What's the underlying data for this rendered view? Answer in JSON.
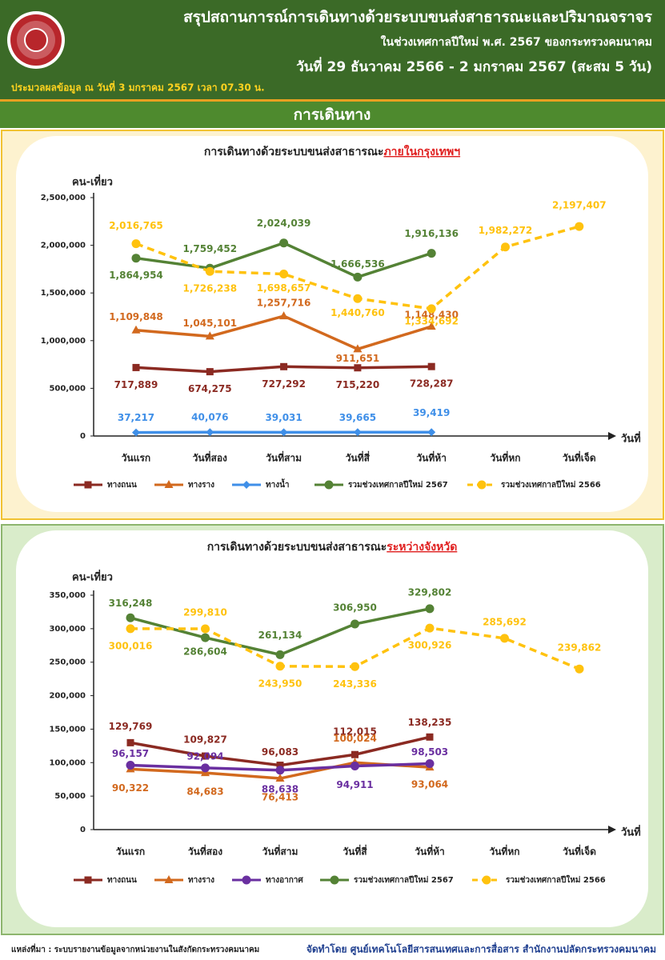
{
  "header": {
    "title": "สรุปสถานการณ์การเดินทางด้วยระบบขนส่งสาธารณะและปริมาณจราจร",
    "subtitle": "ในช่วงเทศกาลปีใหม่ พ.ศ. 2567 ของกระทรวงคมนาคม",
    "date_range": "วันที่ 29 ธันวาคม 2566 - 2 มกราคม 2567 (สะสม 5 วัน)",
    "note": "ประมวลผลข้อมูล ณ วันที่ 3 มกราคม 2567 เวลา 07.30 น.",
    "section": "การเดินทาง"
  },
  "footer": {
    "source": "แหล่งที่มา : ระบบรายงานข้อมูลจากหน่วยงานในสังกัดกระทรวงคมนาคม",
    "credit": "จัดทำโดย ศูนย์เทคโนโลยีสารสนเทศและการสื่อสาร สำนักงานปลัดกระทรวงคมนาคม"
  },
  "chart_data": [
    {
      "type": "line",
      "title": "การเดินทางด้วยระบบขนส่งสาธารณะ",
      "title_highlight": "ภายในกรุงเทพฯ",
      "y_label": "คน-เที่ยว",
      "x_label": "วันที่",
      "categories": [
        "วันแรก",
        "วันที่สอง",
        "วันที่สาม",
        "วันที่สี่",
        "วันที่ห้า",
        "วันที่หก",
        "วันที่เจ็ด"
      ],
      "ylim": [
        0,
        2500000
      ],
      "yticks": [
        0,
        {
          "value": 500000,
          "label": "500,000"
        },
        {
          "value": 1000000,
          "label": "1,000,000"
        },
        {
          "value": 1500000,
          "label": "1,500,000"
        },
        {
          "value": 2000000,
          "label": "2,000,000"
        },
        {
          "value": 2500000,
          "label": "2,500,000"
        }
      ],
      "series": [
        {
          "name": "ทางถนน",
          "color": "#8b2a22",
          "marker": "square",
          "values": [
            717889,
            674275,
            727292,
            715220,
            728287,
            null,
            null
          ],
          "value_labels": [
            "717,889",
            "674,275",
            "727,292",
            "715,220",
            "728,287",
            null,
            null
          ]
        },
        {
          "name": "ทางราง",
          "color": "#d2691e",
          "marker": "triangle",
          "values": [
            1109848,
            1045101,
            1257716,
            911651,
            1148430,
            null,
            null
          ],
          "value_labels": [
            "1,109,848",
            "1,045,101",
            "1,257,716",
            "911,651",
            "1,148,430",
            null,
            null
          ]
        },
        {
          "name": "ทางน้ำ",
          "color": "#3f8fe8",
          "marker": "diamond",
          "values": [
            37217,
            40076,
            39031,
            39665,
            39419,
            null,
            null
          ],
          "value_labels": [
            "37,217",
            "40,076",
            "39,031",
            "39,665",
            "39,419",
            null,
            null
          ]
        },
        {
          "name": "รวมช่วงเทศกาลปีใหม่ 2567",
          "color": "#548235",
          "marker": "circle",
          "values": [
            1864954,
            1759452,
            2024039,
            1666536,
            1916136,
            null,
            null
          ],
          "value_labels": [
            "1,864,954",
            "1,759,452",
            "2,024,039",
            "1,666,536",
            "1,916,136",
            null,
            null
          ]
        },
        {
          "name": "รวมช่วงเทศกาลปีใหม่ 2566",
          "color": "#ffc20e",
          "marker": "circle",
          "dashed": true,
          "values": [
            2016765,
            1726238,
            1698657,
            1440760,
            1334692,
            1982272,
            2197407
          ],
          "value_labels": [
            "2,016,765",
            "1,726,238",
            "1,698,657",
            "1,440,760",
            "1,334,692",
            "1,982,272",
            "2,197,407"
          ]
        }
      ]
    },
    {
      "type": "line",
      "title": "การเดินทางด้วยระบบขนส่งสาธารณะ",
      "title_highlight": "ระหว่างจังหวัด",
      "y_label": "คน-เที่ยว",
      "x_label": "วันที่",
      "categories": [
        "วันแรก",
        "วันที่สอง",
        "วันที่สาม",
        "วันที่สี่",
        "วันที่ห้า",
        "วันที่หก",
        "วันที่เจ็ด"
      ],
      "ylim": [
        0,
        350000
      ],
      "yticks": [
        0,
        {
          "value": 50000,
          "label": "50,000"
        },
        {
          "value": 100000,
          "label": "100,000"
        },
        {
          "value": 150000,
          "label": "150,000"
        },
        {
          "value": 200000,
          "label": "200,000"
        },
        {
          "value": 250000,
          "label": "250,000"
        },
        {
          "value": 300000,
          "label": "300,000"
        },
        {
          "value": 350000,
          "label": "350,000"
        }
      ],
      "series": [
        {
          "name": "ทางถนน",
          "color": "#8b2a22",
          "marker": "square",
          "values": [
            129769,
            109827,
            96083,
            112015,
            138235,
            null,
            null
          ],
          "value_labels": [
            "129,769",
            "109,827",
            "96,083",
            "112,015",
            "138,235",
            null,
            null
          ]
        },
        {
          "name": "ทางราง",
          "color": "#d2691e",
          "marker": "triangle",
          "values": [
            90322,
            84683,
            76413,
            100024,
            93064,
            null,
            null
          ],
          "value_labels": [
            "90,322",
            "84,683",
            "76,413",
            "100,024",
            "93,064",
            null,
            null
          ]
        },
        {
          "name": "ทางอากาศ",
          "color": "#6a2fa0",
          "marker": "circle",
          "values": [
            96157,
            92094,
            88638,
            94911,
            98503,
            null,
            null
          ],
          "value_labels": [
            "96,157",
            "92,094",
            "88,638",
            "94,911",
            "98,503",
            null,
            null
          ]
        },
        {
          "name": "รวมช่วงเทศกาลปีใหม่ 2567",
          "color": "#548235",
          "marker": "circle",
          "values": [
            316248,
            286604,
            261134,
            306950,
            329802,
            null,
            null
          ],
          "value_labels": [
            "316,248",
            "286,604",
            "261,134",
            "306,950",
            "329,802",
            null,
            null
          ]
        },
        {
          "name": "รวมช่วงเทศกาลปีใหม่ 2566",
          "color": "#ffc20e",
          "marker": "circle",
          "dashed": true,
          "values": [
            300016,
            299810,
            243950,
            243336,
            300926,
            285692,
            239862
          ],
          "value_labels": [
            "300,016",
            "299,810",
            "243,950",
            "243,336",
            "300,926",
            "285,692",
            "239,862"
          ]
        }
      ]
    }
  ]
}
